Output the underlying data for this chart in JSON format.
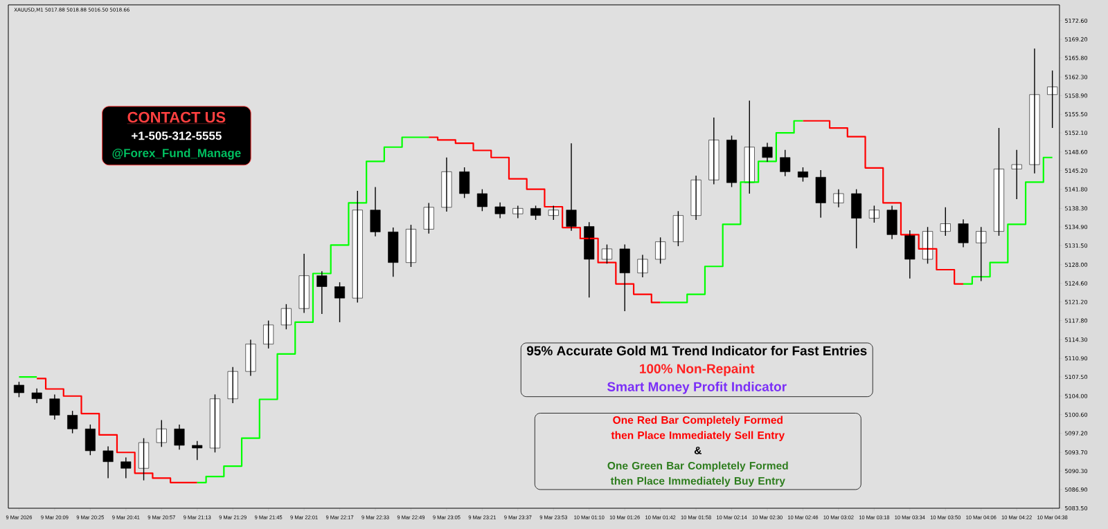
{
  "chart_data": {
    "type": "candlestick",
    "categories": [
      "9 Mar 2026",
      null,
      "9 Mar 20:09",
      null,
      "9 Mar 20:25",
      null,
      "9 Mar 20:41",
      null,
      "9 Mar 20:57",
      null,
      "9 Mar 21:13",
      null,
      "9 Mar 21:29",
      null,
      "9 Mar 21:45",
      null,
      "9 Mar 22:01",
      null,
      "9 Mar 22:17",
      null,
      "9 Mar 22:33",
      null,
      "9 Mar 22:49",
      null,
      "9 Mar 23:05",
      null,
      "9 Mar 23:21",
      null,
      "9 Mar 23:37",
      null,
      "9 Mar 23:53",
      null,
      "10 Mar 01:10",
      null,
      "10 Mar 01:26",
      null,
      "10 Mar 01:42",
      null,
      "10 Mar 01:58",
      null,
      "10 Mar 02:14",
      null,
      "10 Mar 02:30",
      null,
      "10 Mar 02:46",
      null,
      "10 Mar 03:02",
      null,
      "10 Mar 03:18",
      null,
      "10 Mar 03:34",
      null,
      "10 Mar 03:50",
      null,
      "10 Mar 04:06",
      null,
      "10 Mar 04:22",
      null,
      "10 Mar 04:38"
    ],
    "ohlc": [
      [
        5106.0,
        5106.6,
        5103.8,
        5104.6
      ],
      [
        5104.6,
        5105.4,
        5102.7,
        5103.5
      ],
      [
        5103.5,
        5104.3,
        5099.7,
        5100.5
      ],
      [
        5100.5,
        5101.3,
        5097.2,
        5098.0
      ],
      [
        5098.0,
        5098.8,
        5093.2,
        5094.0
      ],
      [
        5094.0,
        5094.8,
        5089.0,
        5092.0
      ],
      [
        5092.0,
        5092.8,
        5089.0,
        5090.8
      ],
      [
        5090.8,
        5096.3,
        5088.6,
        5095.5
      ],
      [
        5095.5,
        5099.6,
        5094.7,
        5098.0
      ],
      [
        5098.0,
        5098.8,
        5094.2,
        5095.0
      ],
      [
        5095.0,
        5095.8,
        5092.3,
        5094.5
      ],
      [
        5094.5,
        5104.3,
        5093.7,
        5103.5
      ],
      [
        5103.5,
        5109.3,
        5102.7,
        5108.5
      ],
      [
        5108.5,
        5114.3,
        5107.7,
        5113.5
      ],
      [
        5113.5,
        5117.8,
        5112.7,
        5117.0
      ],
      [
        5117.0,
        5120.8,
        5116.2,
        5120.0
      ],
      [
        5120.0,
        5130.0,
        5119.2,
        5126.0
      ],
      [
        5126.0,
        5126.8,
        5119.0,
        5124.0
      ],
      [
        5124.0,
        5124.8,
        5117.5,
        5121.9
      ],
      [
        5121.9,
        5141.5,
        5121.1,
        5138.0
      ],
      [
        5138.0,
        5142.2,
        5133.2,
        5134.0
      ],
      [
        5134.0,
        5134.8,
        5125.8,
        5128.4
      ],
      [
        5128.4,
        5135.3,
        5127.6,
        5134.5
      ],
      [
        5134.5,
        5139.3,
        5133.7,
        5138.5
      ],
      [
        5138.5,
        5147.6,
        5137.7,
        5145.0
      ],
      [
        5145.0,
        5145.8,
        5140.2,
        5141.0
      ],
      [
        5141.0,
        5141.8,
        5137.8,
        5138.6
      ],
      [
        5138.6,
        5139.4,
        5136.5,
        5137.3
      ],
      [
        5137.3,
        5138.8,
        5136.5,
        5138.3
      ],
      [
        5138.3,
        5138.8,
        5136.2,
        5137.0
      ],
      [
        5137.0,
        5138.8,
        5136.2,
        5138.0
      ],
      [
        5138.0,
        5150.2,
        5134.2,
        5135.0
      ],
      [
        5135.0,
        5135.8,
        5122.0,
        5129.0
      ],
      [
        5129.0,
        5131.7,
        5128.2,
        5130.9
      ],
      [
        5130.9,
        5131.7,
        5119.5,
        5126.5
      ],
      [
        5126.5,
        5129.8,
        5125.7,
        5129.0
      ],
      [
        5129.0,
        5133.0,
        5128.2,
        5132.2
      ],
      [
        5132.2,
        5137.8,
        5131.4,
        5137.0
      ],
      [
        5137.0,
        5144.3,
        5136.2,
        5143.5
      ],
      [
        5143.5,
        5154.9,
        5142.7,
        5150.8
      ],
      [
        5150.8,
        5151.6,
        5142.2,
        5143.0
      ],
      [
        5143.0,
        5158.0,
        5141.0,
        5149.5
      ],
      [
        5149.5,
        5150.3,
        5146.8,
        5147.6
      ],
      [
        5147.6,
        5149.0,
        5144.2,
        5145.0
      ],
      [
        5145.0,
        5145.8,
        5143.2,
        5144.0
      ],
      [
        5144.0,
        5145.3,
        5136.6,
        5139.3
      ],
      [
        5139.3,
        5141.8,
        5138.5,
        5141.0
      ],
      [
        5141.0,
        5141.8,
        5131.0,
        5136.5
      ],
      [
        5136.5,
        5138.8,
        5135.7,
        5138.0
      ],
      [
        5138.0,
        5138.8,
        5132.7,
        5133.5
      ],
      [
        5133.5,
        5134.3,
        5125.5,
        5129.0
      ],
      [
        5129.0,
        5134.9,
        5128.2,
        5134.1
      ],
      [
        5134.1,
        5138.5,
        5133.3,
        5135.5
      ],
      [
        5135.5,
        5136.3,
        5131.2,
        5132.0
      ],
      [
        5132.0,
        5134.9,
        5125.0,
        5134.1
      ],
      [
        5134.1,
        5153.0,
        5133.3,
        5145.5
      ],
      [
        5145.5,
        5149.0,
        5140.0,
        5146.3
      ],
      [
        5146.3,
        5167.5,
        5144.7,
        5159.1
      ],
      [
        5159.1,
        5163.5,
        5153.0,
        5160.5
      ]
    ],
    "series": [
      {
        "type": "step",
        "color": "#ff0000",
        "values": [
          null,
          5107.2,
          5105.3,
          5104.0,
          5100.8,
          5096.9,
          5093.7,
          5089.9,
          5089.0,
          5088.2,
          5088.2,
          null,
          null,
          null,
          null,
          null,
          null,
          null,
          null,
          null,
          null,
          null,
          null,
          5151.3,
          5150.8,
          5150.2,
          5148.9,
          5147.6,
          5143.7,
          5141.8,
          5138.6,
          5134.8,
          5132.8,
          5128.4,
          5124.5,
          5122.6,
          5121.1,
          null,
          null,
          null,
          null,
          null,
          null,
          null,
          5154.3,
          5154.3,
          5153.0,
          5151.4,
          5145.7,
          5139.3,
          5133.5,
          5130.9,
          5127.1,
          5124.5,
          null,
          null,
          null,
          null,
          null
        ]
      },
      {
        "type": "step",
        "color": "#00ff00",
        "values": [
          5107.5,
          5107.5,
          null,
          null,
          null,
          null,
          null,
          null,
          null,
          null,
          5088.2,
          5089.3,
          5091.2,
          5096.3,
          5103.4,
          5111.7,
          5117.5,
          5126.4,
          5131.6,
          5139.3,
          5146.9,
          5149.5,
          5151.3,
          5151.3,
          null,
          null,
          null,
          null,
          null,
          null,
          null,
          null,
          null,
          null,
          null,
          null,
          5121.1,
          5121.1,
          5122.6,
          5127.7,
          5135.4,
          5143.1,
          5146.9,
          5152.1,
          5154.3,
          null,
          null,
          null,
          null,
          null,
          null,
          null,
          null,
          5124.5,
          5125.8,
          5128.4,
          5135.4,
          5143.1,
          5147.6
        ]
      }
    ],
    "ylim": [
      5083.5,
      5175.5
    ],
    "yticks": [
      {
        "value": 5083.5,
        "label": "5083.50"
      },
      {
        "value": 5086.9,
        "label": "5086.90"
      },
      {
        "value": 5090.3,
        "label": "5090.30"
      },
      {
        "value": 5093.7,
        "label": "5093.70"
      },
      {
        "value": 5097.2,
        "label": "5097.20"
      },
      {
        "value": 5100.6,
        "label": "5100.60"
      },
      {
        "value": 5104.0,
        "label": "5104.00"
      },
      {
        "value": 5107.5,
        "label": "5107.50"
      },
      {
        "value": 5110.9,
        "label": "5110.90"
      },
      {
        "value": 5114.3,
        "label": "5114.30"
      },
      {
        "value": 5117.8,
        "label": "5117.80"
      },
      {
        "value": 5121.2,
        "label": "5121.20"
      },
      {
        "value": 5124.6,
        "label": "5124.60"
      },
      {
        "value": 5128.0,
        "label": "5128.00"
      },
      {
        "value": 5131.5,
        "label": "5131.50"
      },
      {
        "value": 5134.9,
        "label": "5134.90"
      },
      {
        "value": 5138.3,
        "label": "5138.30"
      },
      {
        "value": 5141.8,
        "label": "5141.80"
      },
      {
        "value": 5145.2,
        "label": "5145.20"
      },
      {
        "value": 5148.6,
        "label": "5148.60"
      },
      {
        "value": 5152.1,
        "label": "5152.10"
      },
      {
        "value": 5155.5,
        "label": "5155.50"
      },
      {
        "value": 5158.9,
        "label": "5158.90"
      },
      {
        "value": 5162.3,
        "label": "5162.30"
      },
      {
        "value": 5165.8,
        "label": "5165.80"
      },
      {
        "value": 5169.2,
        "label": "5169.20"
      },
      {
        "value": 5172.6,
        "label": "5172.60"
      }
    ],
    "annotations": [
      "XAUUSD,M1  5017.88 5018.88 5016.50 5018.66",
      "CONTACT US",
      "+1-505-312-5555",
      "@Forex_Fund_Manage",
      "95% Accurate Gold M1 Trend Indicator for Fast Entries",
      "100% Non-Repaint",
      "Smart Money Profit Indicator",
      "One Red Bar Completely Formed then Place Immediately Sell Entry",
      "&",
      "One Green Bar Completely Formed then Place Immediately Buy Entry"
    ]
  }
}
